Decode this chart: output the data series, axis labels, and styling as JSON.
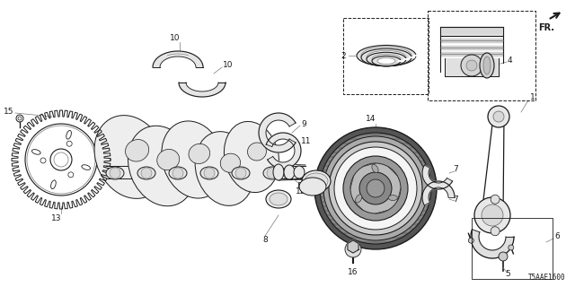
{
  "bg_color": "#ffffff",
  "part_code": "T5AAE1600",
  "fig_width": 6.4,
  "fig_height": 3.2,
  "dpi": 100,
  "color": "#1a1a1a",
  "gray": "#777777",
  "lgray": "#aaaaaa"
}
